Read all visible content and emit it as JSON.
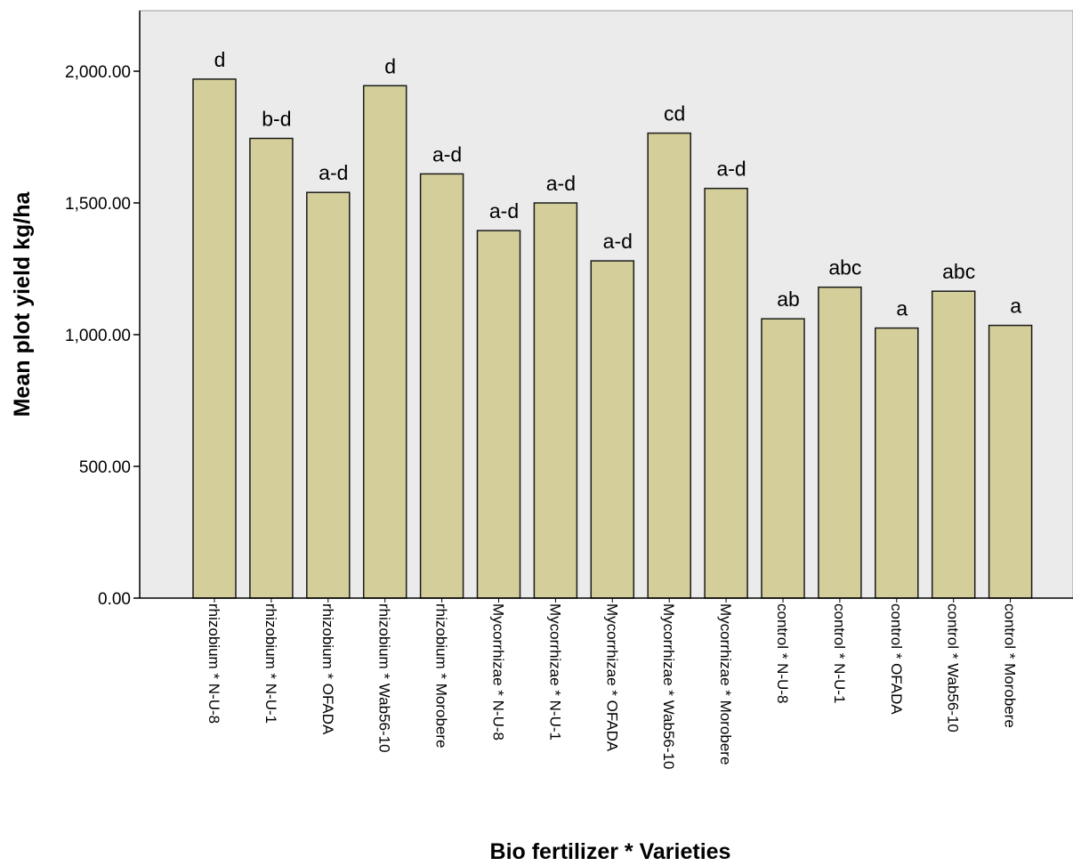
{
  "chart_data": {
    "type": "bar",
    "title": "",
    "xlabel": "Bio fertilizer * Varieties",
    "ylabel": "Mean plot yield kg/ha",
    "ylim": [
      0,
      2000
    ],
    "yticks": [
      "0.00",
      "500.00",
      "1,000.00",
      "1,500.00",
      "2,000.00"
    ],
    "ytick_values": [
      0,
      500,
      1000,
      1500,
      2000
    ],
    "grid": false,
    "legend": "none",
    "categories": [
      "rhizobium * N-U-8",
      "rhizobium * N-U-1",
      "rhizobium * OFADA",
      "rhizobium * Wab56-10",
      "rhizobium * Morobere",
      "Mycorrhizae * N-U-8",
      "Mycorrhizae * N-U-1",
      "Mycorrhizae * OFADA",
      "Mycorrhizae * Wab56-10",
      "Mycorrhizae * Morobere",
      "control * N-U-8",
      "control * N-U-1",
      "control * OFADA",
      "control * Wab56-10",
      "control * Morobere"
    ],
    "values": [
      1970,
      1745,
      1540,
      1945,
      1610,
      1395,
      1500,
      1280,
      1765,
      1555,
      1060,
      1180,
      1025,
      1165,
      1035
    ],
    "letters": [
      "d",
      "b-d",
      "a-d",
      "d",
      "a-d",
      "a-d",
      "a-d",
      "a-d",
      "cd",
      "a-d",
      "ab",
      "abc",
      "a",
      "abc",
      "a"
    ],
    "colors": {
      "bar_fill": "#d4cf9a",
      "bar_stroke": "#1a1a1a",
      "plot_background": "#ebebeb",
      "axis": "#000000"
    }
  }
}
